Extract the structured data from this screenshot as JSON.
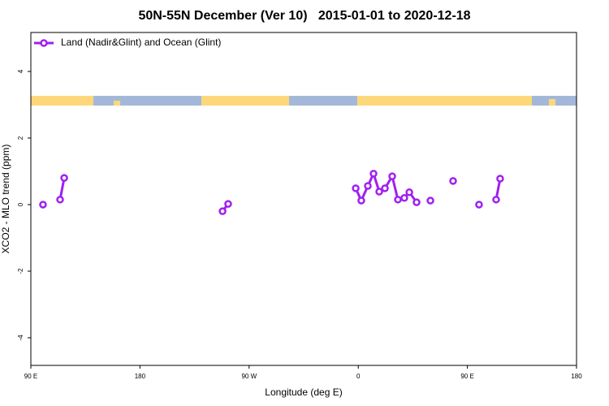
{
  "chart_data": {
    "type": "line",
    "title": "50N-55N December (Ver 10)   2015-01-01 to 2020-12-18",
    "x_label": "Longitude (deg E)",
    "y_label": "XCO2 - MLO trend (ppm)",
    "x": [
      -260,
      null,
      -245.9,
      -242.5,
      null,
      -111.9,
      -107.3,
      null,
      -2.1,
      2.5,
      7.9,
      12.6,
      17.3,
      22.0,
      28.0,
      32.7,
      38.0,
      42.1,
      48.1,
      null,
      59.5,
      null,
      78.2,
      null,
      99.6,
      null,
      113.7,
      117.0
    ],
    "series": [
      {
        "name": "Land (Nadir&Glint) and Ocean (Glint)",
        "color": "#a020f0",
        "values": [
          0.0,
          null,
          0.15,
          0.8,
          null,
          -0.2,
          0.02,
          null,
          0.49,
          0.12,
          0.56,
          0.93,
          0.39,
          0.49,
          0.85,
          0.15,
          0.2,
          0.37,
          0.07,
          null,
          0.12,
          null,
          0.71,
          null,
          0.0,
          null,
          0.15,
          0.78
        ]
      }
    ],
    "xlim": [
      -270,
      180
    ],
    "xticks": [
      {
        "value": -270,
        "label": "90 E"
      },
      {
        "value": -180,
        "label": "180"
      },
      {
        "value": -90,
        "label": "90 W"
      },
      0,
      {
        "value": 90,
        "label": "90 E"
      },
      180
    ],
    "ylim": [
      -4.83,
      5.17
    ],
    "yticks": [
      -4,
      -2,
      0,
      2,
      4
    ],
    "legend": "top-left"
  }
}
